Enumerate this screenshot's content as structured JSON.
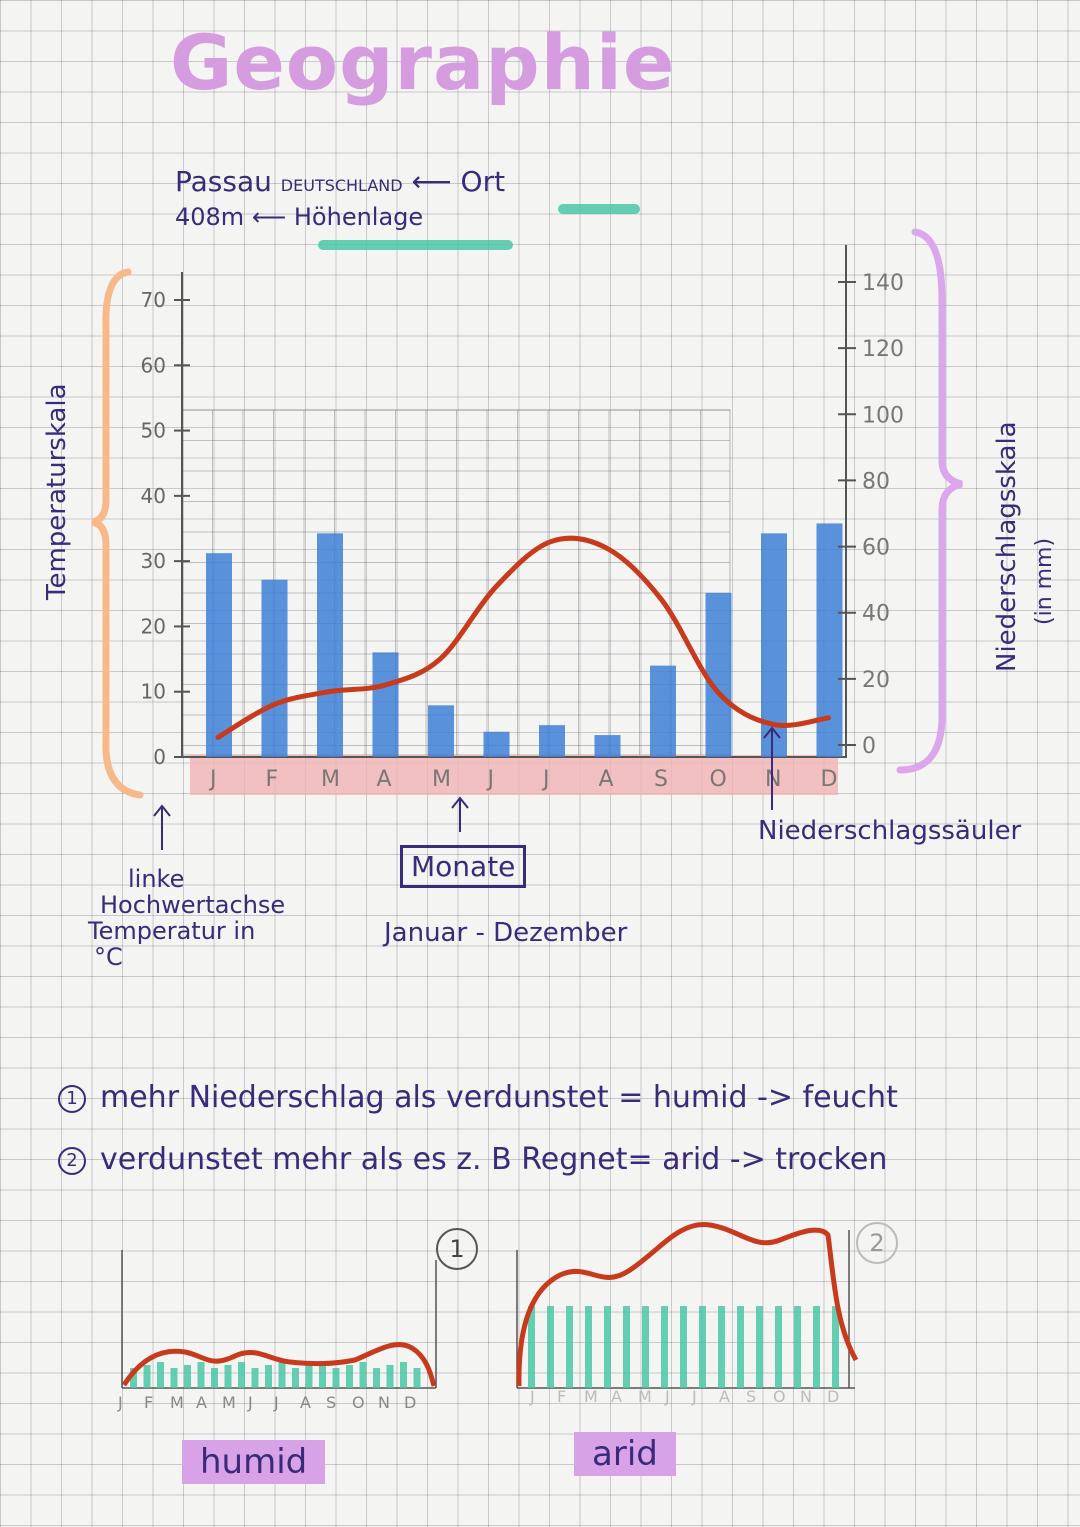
{
  "title": "Geographie",
  "location": {
    "place": "Passau",
    "country": "DEUTSCHLAND",
    "place_label": "Ort",
    "elevation": "408m",
    "elevation_label": "Höhenlage"
  },
  "axis_titles": {
    "left": "Temperaturskala",
    "right_line1": "Niederschlagsskala",
    "right_line2": "(in mm)"
  },
  "annotations": {
    "left_axis_line1": "linke",
    "left_axis_line2": "Hochwertachse",
    "left_axis_line3": "Temperatur in",
    "left_axis_line4": "°C",
    "months_box": "Monate",
    "months_range": "Januar - Dezember",
    "columns": "Niederschlagssäuler"
  },
  "rules": {
    "rule1_num": "1",
    "rule1": "mehr Niederschlag als verdunstet = humid -> feucht",
    "rule2_num": "2",
    "rule2": "verdunstet mehr als es z. B Regnet= arid -> trocken"
  },
  "mini_charts": {
    "humid_label": "humid",
    "humid_num": "1",
    "arid_label": "arid",
    "arid_num": "2",
    "months": [
      "J",
      "F",
      "M",
      "A",
      "M",
      "J",
      "J",
      "A",
      "S",
      "O",
      "N",
      "D"
    ]
  },
  "colors": {
    "bars": "#3d7fd6",
    "line": "#c83a1c",
    "teal": "#49c7a6",
    "month_band": "#f1b3b3",
    "bracket_orange": "#f7b98a",
    "bracket_purple": "#dba6ec"
  },
  "chart_data": {
    "type": "bar",
    "categories": [
      "J",
      "F",
      "M",
      "A",
      "M",
      "J",
      "J",
      "A",
      "S",
      "O",
      "N",
      "D"
    ],
    "left_axis": {
      "ticks": [
        "0",
        "10",
        "20",
        "30",
        "40",
        "50",
        "60",
        "70"
      ],
      "ylim": [
        0,
        70
      ]
    },
    "right_axis": {
      "ticks": [
        "0",
        "20",
        "40",
        "60",
        "80",
        "100",
        "120",
        "140"
      ],
      "ylim": [
        0,
        140
      ]
    },
    "series": [
      {
        "kind": "bar",
        "axis": "right",
        "values": [
          58,
          50,
          64,
          28,
          12,
          4,
          6,
          3,
          24,
          46,
          64,
          67
        ]
      },
      {
        "kind": "line",
        "axis": "left",
        "values": [
          3,
          8,
          10,
          11,
          15,
          26,
          33,
          32,
          24,
          10,
          5,
          6
        ]
      }
    ]
  }
}
